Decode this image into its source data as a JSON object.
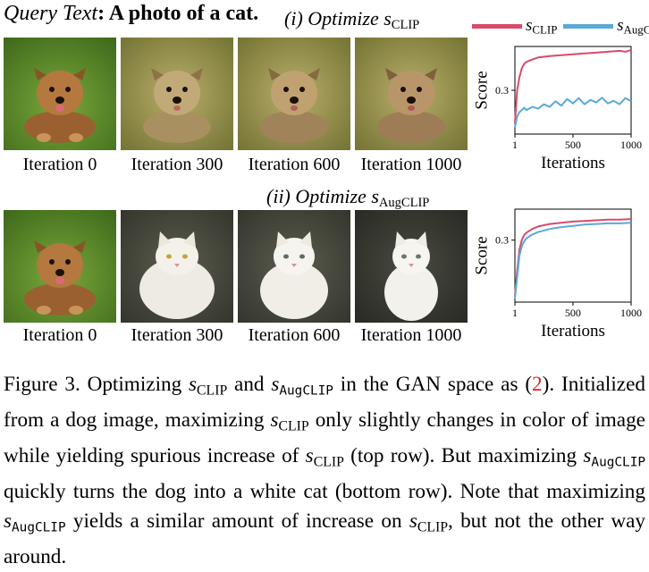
{
  "query": {
    "label": "Query Text",
    "sep": ": ",
    "text": "A photo of a cat."
  },
  "rows": [
    {
      "title_prefix": "(i) Optimize ",
      "title_var": "s",
      "title_sub": "CLIP"
    },
    {
      "title_prefix": "(ii) Optimize ",
      "title_var": "s",
      "title_sub": "AugCLIP"
    }
  ],
  "iteration_labels": [
    "Iteration 0",
    "Iteration 300",
    "Iteration 600",
    "Iteration 1000"
  ],
  "image_subjects": {
    "row1": [
      "dog",
      "dog",
      "dog",
      "dog"
    ],
    "row2": [
      "dog",
      "white cat",
      "white cat",
      "white cat"
    ]
  },
  "legend": [
    {
      "var": "s",
      "sub": "CLIP",
      "color": "#d94a6a"
    },
    {
      "var": "s",
      "sub": "AugCLIP",
      "color": "#5aaad8"
    }
  ],
  "colors": {
    "clip": "#d94a6a",
    "augclip": "#5aaad8",
    "grass": "#5f8a2e",
    "dog": "#b07440",
    "cat": "#f2efe8"
  },
  "chart_data": [
    {
      "type": "line",
      "xlabel": "Iterations",
      "ylabel": "Score",
      "x_ticks": [
        1,
        500,
        1000
      ],
      "y_ticks": [
        0.3
      ],
      "xlim": [
        1,
        1000
      ],
      "ylim": [
        0.2,
        0.4
      ],
      "series": [
        {
          "name": "s_CLIP",
          "color": "#d94a6a",
          "x": [
            1,
            20,
            40,
            60,
            80,
            100,
            150,
            200,
            300,
            400,
            500,
            600,
            700,
            800,
            900,
            950,
            1000
          ],
          "y": [
            0.225,
            0.3,
            0.33,
            0.35,
            0.36,
            0.365,
            0.37,
            0.375,
            0.378,
            0.38,
            0.382,
            0.384,
            0.386,
            0.388,
            0.39,
            0.388,
            0.392
          ]
        },
        {
          "name": "s_AugCLIP",
          "color": "#5aaad8",
          "x": [
            1,
            20,
            40,
            60,
            80,
            100,
            150,
            200,
            250,
            300,
            350,
            400,
            450,
            500,
            550,
            600,
            650,
            700,
            750,
            800,
            850,
            900,
            950,
            1000
          ],
          "y": [
            0.215,
            0.24,
            0.25,
            0.255,
            0.26,
            0.255,
            0.262,
            0.258,
            0.268,
            0.262,
            0.275,
            0.265,
            0.28,
            0.27,
            0.282,
            0.268,
            0.278,
            0.272,
            0.283,
            0.27,
            0.276,
            0.268,
            0.282,
            0.275
          ]
        }
      ]
    },
    {
      "type": "line",
      "xlabel": "Iterations",
      "ylabel": "Score",
      "x_ticks": [
        1,
        500,
        1000
      ],
      "y_ticks": [
        0.3
      ],
      "xlim": [
        1,
        1000
      ],
      "ylim": [
        0.2,
        0.35
      ],
      "series": [
        {
          "name": "s_CLIP",
          "color": "#d94a6a",
          "x": [
            1,
            20,
            40,
            60,
            80,
            100,
            150,
            200,
            300,
            400,
            500,
            600,
            700,
            800,
            900,
            1000
          ],
          "y": [
            0.21,
            0.25,
            0.285,
            0.3,
            0.308,
            0.312,
            0.318,
            0.322,
            0.326,
            0.328,
            0.33,
            0.331,
            0.332,
            0.333,
            0.333,
            0.334
          ]
        },
        {
          "name": "s_AugCLIP",
          "color": "#5aaad8",
          "x": [
            1,
            20,
            40,
            60,
            80,
            100,
            150,
            200,
            300,
            400,
            500,
            600,
            700,
            800,
            900,
            1000
          ],
          "y": [
            0.205,
            0.24,
            0.275,
            0.29,
            0.298,
            0.303,
            0.309,
            0.313,
            0.318,
            0.321,
            0.323,
            0.325,
            0.326,
            0.327,
            0.327,
            0.328
          ]
        }
      ]
    }
  ],
  "caption": {
    "p1": "Figure 3.  Optimizing ",
    "v1": "s",
    "s1": "CLIP",
    "p2": " and ",
    "v2": "s",
    "s2": "AugCLIP",
    "p3": " in the GAN space as ",
    "ref_open": "(",
    "ref": "2",
    "ref_close": ").",
    "p4": " Initialized from a dog image, maximizing ",
    "v3": "s",
    "s3": "CLIP",
    "p5": " only slightly changes in color of image while yielding spurious increase of ",
    "v4": "s",
    "s4": "CLIP",
    "p6": " (top row).  But maximizing ",
    "v5": "s",
    "s5": "AugCLIP",
    "p7": " quickly turns the dog into a white cat (bottom row).  Note that maximizing ",
    "v6": "s",
    "s6": "AugCLIP",
    "p8": " yields a similar amount of increase on ",
    "v7": "s",
    "s7": "CLIP",
    "p9": ", but not the other way around."
  }
}
